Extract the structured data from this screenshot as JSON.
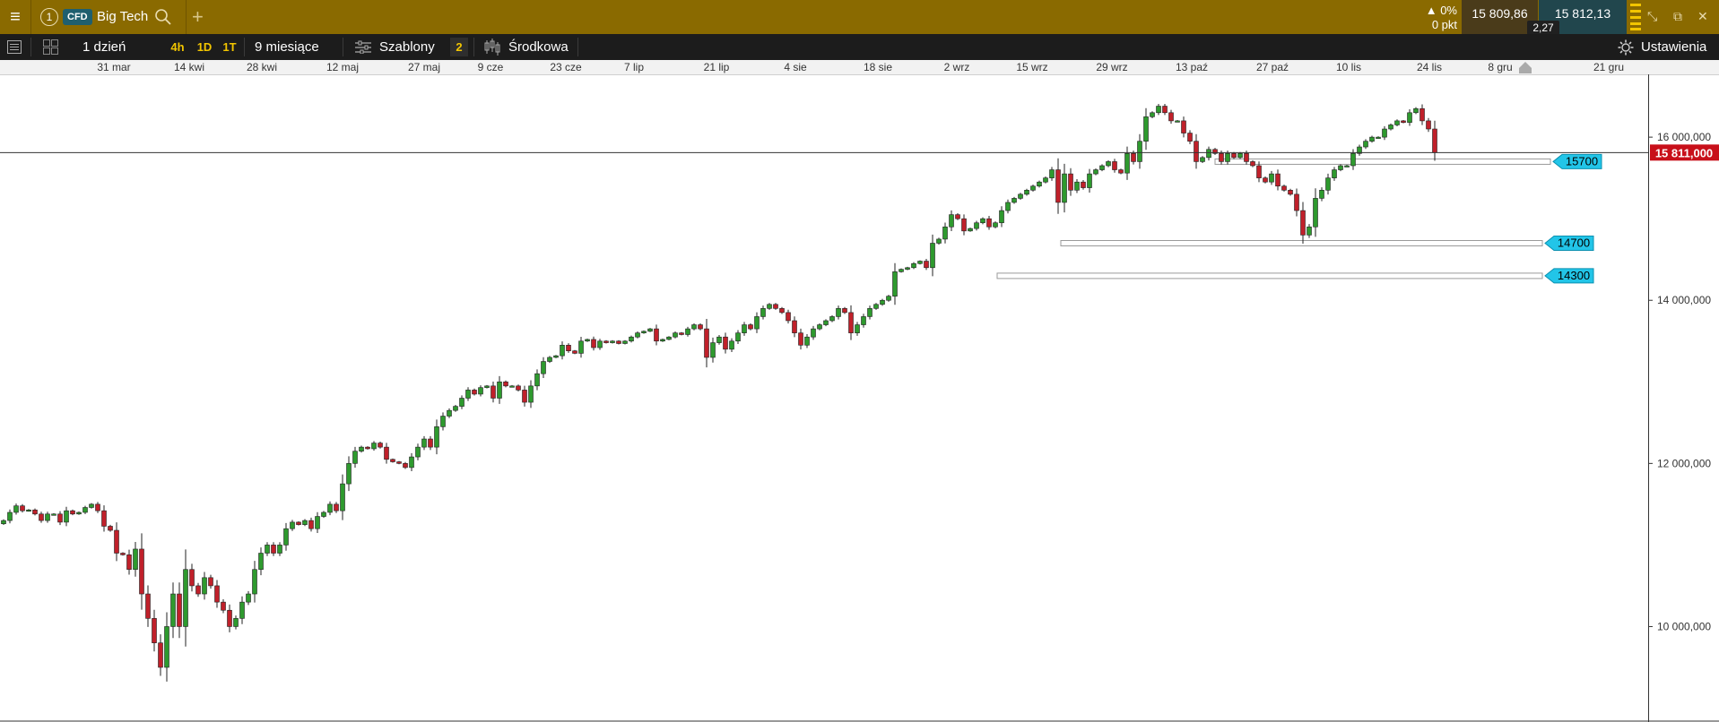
{
  "titlebar": {
    "instrument_number": "1",
    "instrument_type": "CFD",
    "instrument_name": "Big Tech",
    "change_percent": "▲ 0%",
    "change_points": "0 pkt",
    "bid": "15 809,86",
    "ask": "15 812,13",
    "spread": "2,27"
  },
  "toolbar": {
    "range": "1 dzień",
    "tf_4h": "4h",
    "tf_1d": "1D",
    "tf_1t": "1T",
    "period": "9 miesiące",
    "templates": "Szablony",
    "templates_count": "2",
    "price_type": "Środkowa",
    "settings": "Ustawienia"
  },
  "colors": {
    "up": "#2e9a2e",
    "down": "#c0202a",
    "price_tag": "#c8101a",
    "alert_tag": "#22c5e8"
  },
  "chart_data": {
    "type": "candlestick",
    "x_tick_labels": [
      "31 mar",
      "14 kwi",
      "28 kwi",
      "12 maj",
      "27 maj",
      "9 cze",
      "23 cze",
      "7 lip",
      "21 lip",
      "4 sie",
      "18 sie",
      "2 wrz",
      "15 wrz",
      "29 wrz",
      "13 paź",
      "27 paź",
      "10 lis",
      "24 lis",
      "8 gru",
      "21 gru"
    ],
    "y_tick_labels": [
      "16 000,000",
      "14 000,000",
      "12 000,000",
      "10 000,000"
    ],
    "y_ticks": [
      16000,
      14000,
      12000,
      10000
    ],
    "ylim": [
      8830,
      16770
    ],
    "current_price": 15811,
    "current_price_label": "15 811,000",
    "price_levels": [
      {
        "value": 15700,
        "label": "15700"
      },
      {
        "value": 14700,
        "label": "14700"
      },
      {
        "value": 14300,
        "label": "14300"
      }
    ],
    "closes": [
      11300,
      11400,
      11480,
      11420,
      11430,
      11380,
      11300,
      11380,
      11380,
      11280,
      11420,
      11380,
      11400,
      11460,
      11500,
      11420,
      11230,
      11180,
      10900,
      10880,
      10700,
      10950,
      10400,
      10100,
      9800,
      9500,
      10000,
      10400,
      10000,
      10700,
      10500,
      10400,
      10600,
      10500,
      10300,
      10200,
      10000,
      10100,
      10300,
      10400,
      10700,
      10900,
      11000,
      10900,
      11000,
      11200,
      11280,
      11250,
      11300,
      11200,
      11350,
      11400,
      11500,
      11420,
      11750,
      12000,
      12150,
      12200,
      12180,
      12250,
      12200,
      12050,
      12020,
      12000,
      11950,
      12080,
      12200,
      12300,
      12200,
      12450,
      12580,
      12650,
      12700,
      12800,
      12900,
      12850,
      12930,
      12950,
      12800,
      13000,
      12950,
      12950,
      12900,
      12750,
      12950,
      13100,
      13250,
      13300,
      13320,
      13450,
      13380,
      13350,
      13500,
      13520,
      13420,
      13500,
      13480,
      13500,
      13470,
      13500,
      13550,
      13600,
      13620,
      13650,
      13500,
      13520,
      13550,
      13600,
      13580,
      13650,
      13700,
      13650,
      13300,
      13480,
      13550,
      13400,
      13500,
      13600,
      13700,
      13650,
      13800,
      13900,
      13950,
      13900,
      13850,
      13750,
      13600,
      13450,
      13550,
      13650,
      13700,
      13750,
      13800,
      13900,
      13850,
      13600,
      13700,
      13800,
      13900,
      13950,
      14000,
      14050,
      14350,
      14380,
      14400,
      14450,
      14480,
      14400,
      14700,
      14750,
      14900,
      15050,
      15000,
      14850,
      14880,
      14950,
      15000,
      14900,
      14950,
      15100,
      15200,
      15250,
      15300,
      15350,
      15400,
      15450,
      15500,
      15600,
      15200,
      15550,
      15350,
      15450,
      15380,
      15550,
      15600,
      15650,
      15700,
      15600,
      15560,
      15800,
      15700,
      15950,
      16250,
      16300,
      16380,
      16300,
      16200,
      16200,
      16050,
      15950,
      15700,
      15750,
      15850,
      15800,
      15700,
      15800,
      15750,
      15800,
      15700,
      15650,
      15500,
      15450,
      15550,
      15400,
      15350,
      15300,
      15100,
      14800,
      14900,
      15250,
      15350,
      15500,
      15600,
      15650,
      15650,
      15800,
      15880,
      15950,
      16000,
      16000,
      16100,
      16150,
      16200,
      16180,
      16300,
      16350,
      16200,
      16100,
      15811
    ]
  }
}
